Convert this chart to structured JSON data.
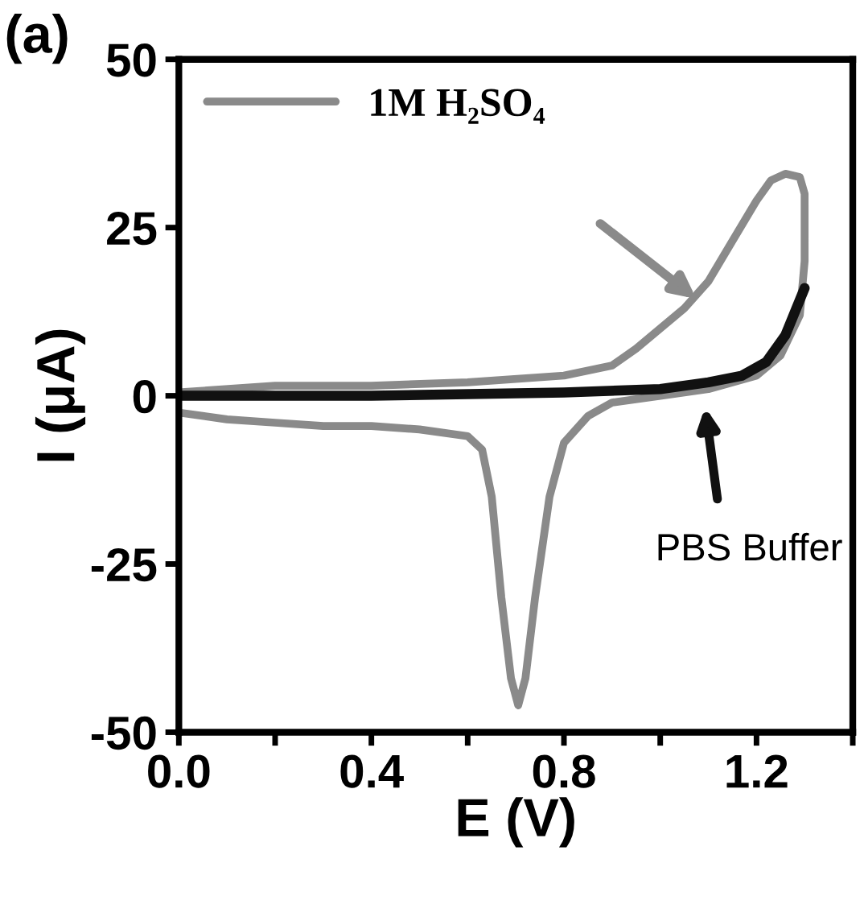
{
  "chart_data": {
    "type": "line",
    "xlabel": "E (V)",
    "ylabel": "I (μA)",
    "xlim": [
      0.0,
      1.4
    ],
    "ylim": [
      -50,
      50
    ],
    "xticks": [
      "0.0",
      {
        "value": 0.2,
        "label": null
      },
      0.4,
      {
        "value": 0.6,
        "label": null
      },
      0.8,
      {
        "value": 1.0,
        "label": null
      },
      1.2,
      {
        "value": 1.4,
        "label": null
      }
    ],
    "yticks": [
      -50,
      -25,
      0,
      25,
      50
    ],
    "grid": false,
    "legend": "top left",
    "marker": "none",
    "line_style": "solid",
    "series": [
      {
        "name": "1M H₂SO₄",
        "color": "#8a8a8a",
        "x": [
          0.0,
          0.2,
          0.4,
          0.6,
          0.8,
          0.9,
          0.95,
          1.0,
          1.05,
          1.1,
          1.15,
          1.2,
          1.23,
          1.26,
          1.29,
          1.3,
          1.3,
          1.29,
          1.25,
          1.2,
          1.1,
          1.0,
          0.9,
          0.85,
          0.8,
          0.77,
          0.74,
          0.72,
          0.705,
          0.69,
          0.67,
          0.65,
          0.63,
          0.6,
          0.5,
          0.4,
          0.3,
          0.2,
          0.1,
          0.0
        ],
        "values": [
          0.5,
          1.5,
          1.5,
          2,
          3,
          4.5,
          7,
          10,
          13,
          17,
          23,
          29,
          32,
          33,
          32.5,
          30,
          20,
          12,
          6,
          3,
          1,
          0,
          -1,
          -3,
          -7,
          -15,
          -30,
          -42,
          -46,
          -42,
          -30,
          -15,
          -8,
          -6,
          -5,
          -4.5,
          -4.5,
          -4,
          -3.5,
          -2.5
        ]
      },
      {
        "color": "#111111",
        "x": [
          0.0,
          0.4,
          0.8,
          1.0,
          1.1,
          1.17,
          1.22,
          1.26,
          1.3
        ],
        "values": [
          0,
          0,
          0.5,
          1,
          2,
          3,
          5,
          9,
          16
        ]
      }
    ],
    "annotations": [
      "(a)",
      "PBS Buffer"
    ]
  }
}
